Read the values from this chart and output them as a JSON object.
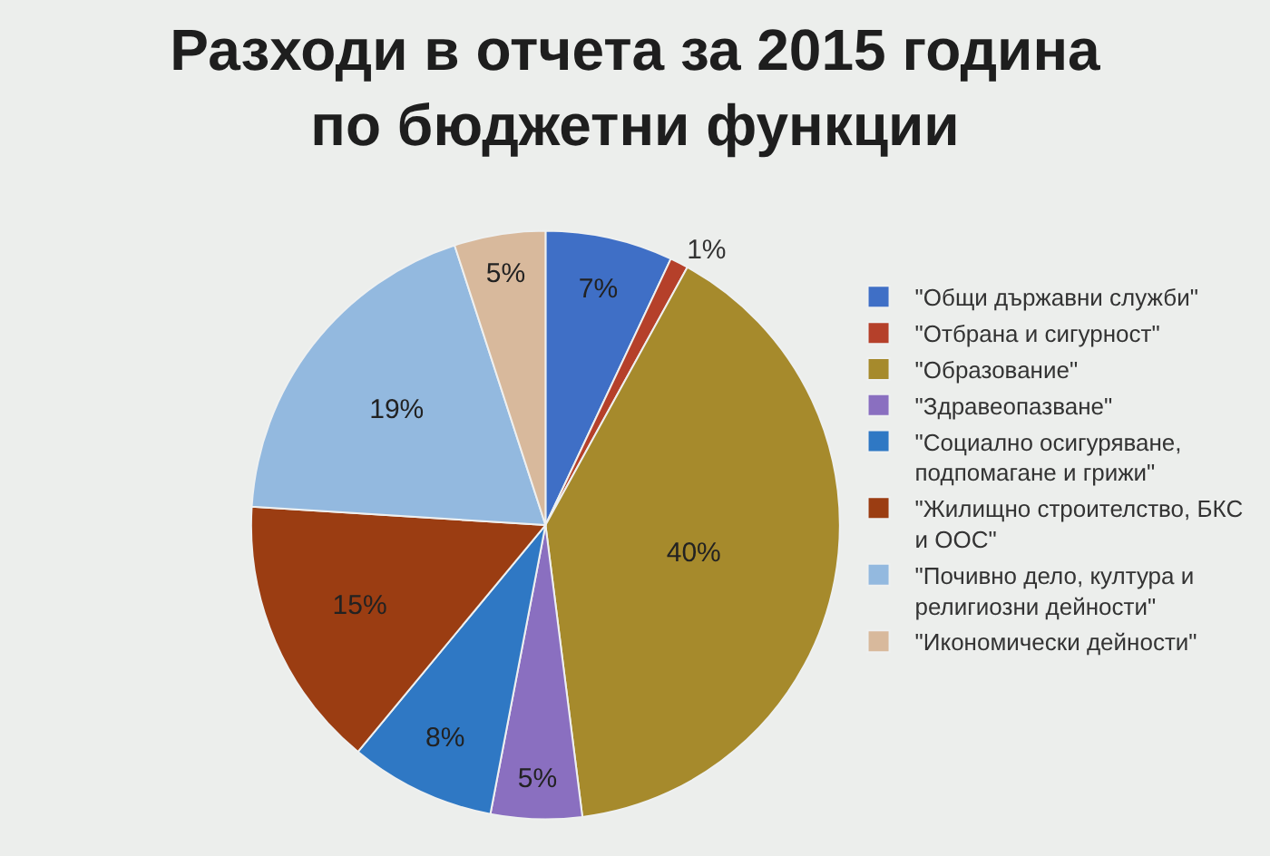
{
  "chart_data": {
    "type": "pie",
    "title": "Разходи в отчета за 2015 година по бюджетни функции",
    "categories": [
      "\"Общи държавни служби\"",
      "\"Отбрана и сигурност\"",
      "\"Образование\"",
      "\"Здравеопазване\"",
      "\"Социално осигуряване, подпомагане и грижи\"",
      "\"Жилищно строителство, БКС и ООС\"",
      "\"Почивно дело, култура и религиозни дейности\"",
      "\"Икономически дейности\""
    ],
    "values": [
      7,
      1,
      40,
      5,
      8,
      15,
      19,
      5
    ],
    "colors": [
      "#3f6fc6",
      "#b5402a",
      "#a68a2c",
      "#8a6fc0",
      "#2f78c4",
      "#9b3d12",
      "#93b9df",
      "#d8b99c"
    ],
    "value_labels": [
      "7%",
      "1%",
      "40%",
      "5%",
      "8%",
      "15%",
      "19%",
      "5%"
    ],
    "legend": "right"
  }
}
